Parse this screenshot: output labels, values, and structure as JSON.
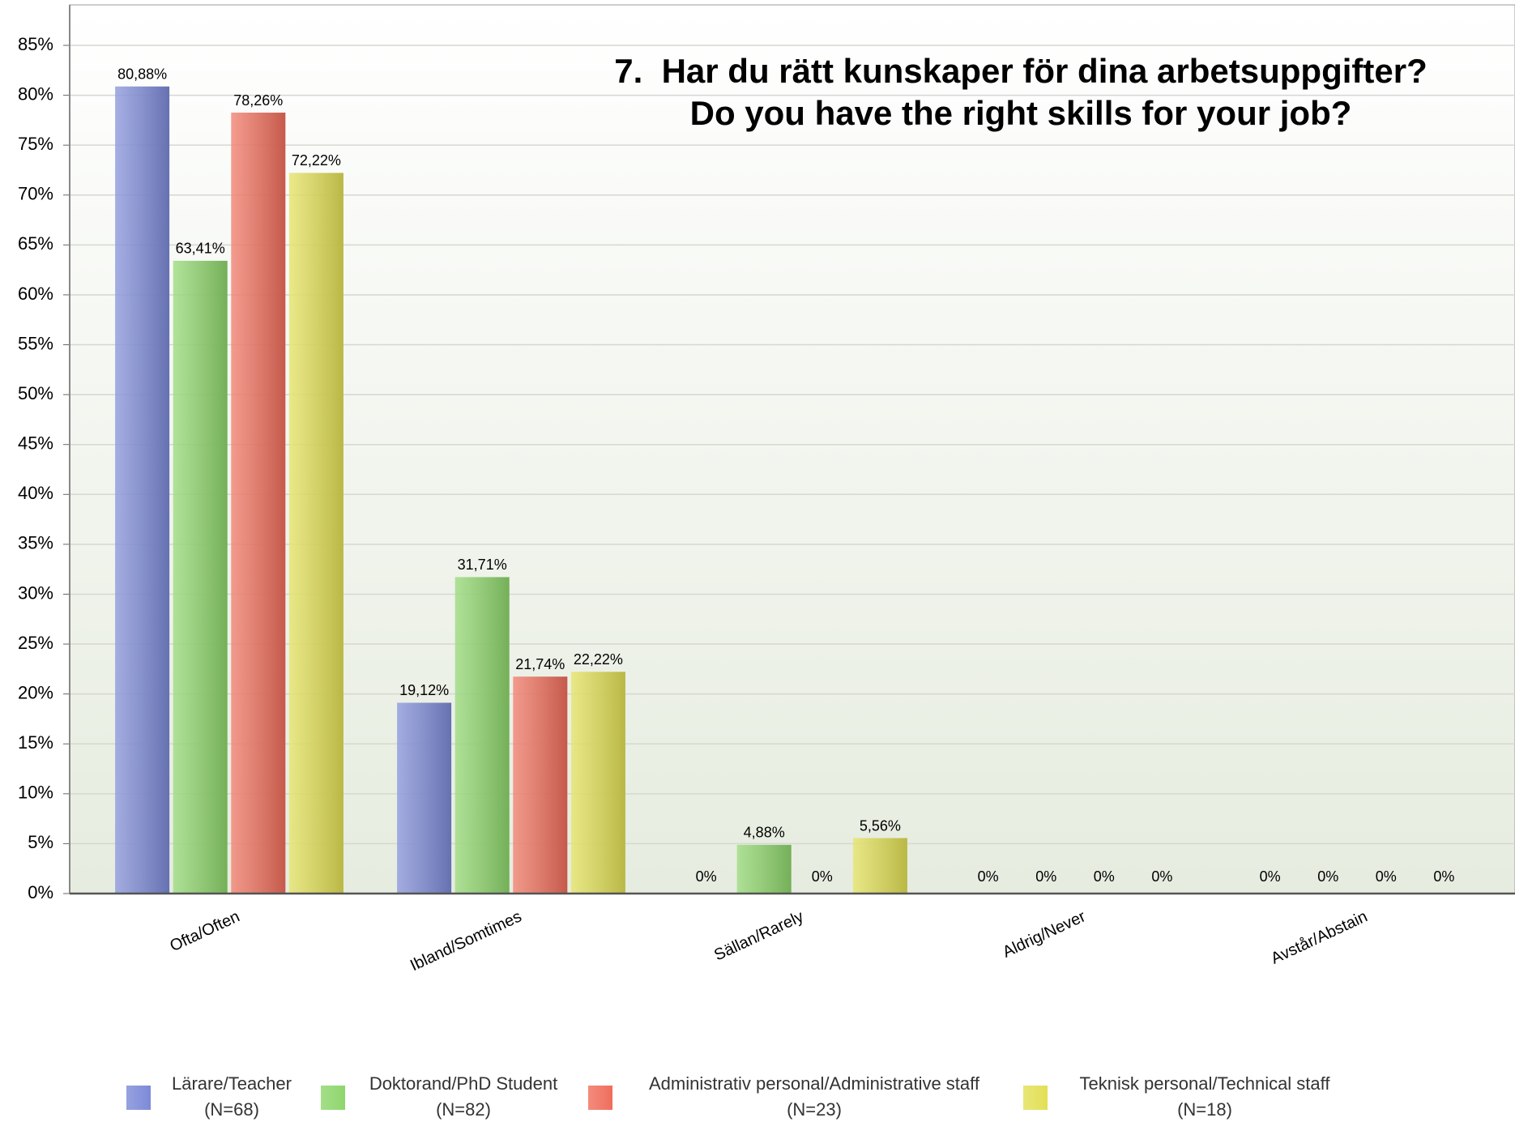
{
  "chart_data": {
    "type": "bar",
    "title": "7.  Har du rätt kunskaper för dina arbetsuppgifter?\nDo you have the right skills for your job?",
    "categories": [
      "Ofta/Often",
      "Ibland/Somtimes",
      "Sällan/Rarely",
      "Aldrig/Never",
      "Avstår/Abstain"
    ],
    "series": [
      {
        "name": "Lärare/Teacher\n(N=68)",
        "color": "#7d8ad8",
        "values": [
          80.88,
          19.12,
          0,
          0,
          0
        ],
        "value_labels": [
          "80,88%",
          "19,12%",
          "0%",
          "0%",
          "0%"
        ]
      },
      {
        "name": "Doktorand/PhD Student\n(N=82)",
        "color": "#8ed66c",
        "values": [
          63.41,
          31.71,
          4.88,
          0,
          0
        ],
        "value_labels": [
          "63,41%",
          "31,71%",
          "4,88%",
          "0%",
          "0%"
        ]
      },
      {
        "name": "Administrativ personal/Administrative staff\n(N=23)",
        "color": "#f06e5c",
        "values": [
          78.26,
          21.74,
          0,
          0,
          0
        ],
        "value_labels": [
          "78,26%",
          "21,74%",
          "0%",
          "0%",
          "0%"
        ]
      },
      {
        "name": "Teknisk personal/Technical staff\n(N=18)",
        "color": "#e2e055",
        "values": [
          72.22,
          22.22,
          5.56,
          0,
          0
        ],
        "value_labels": [
          "72,22%",
          "22,22%",
          "5,56%",
          "0%",
          "0%"
        ]
      }
    ],
    "ylim": [
      0,
      85
    ],
    "yticks": [
      {
        "value": 0,
        "label": "0%"
      },
      {
        "value": 5,
        "label": "5%"
      },
      {
        "value": 10,
        "label": "10%"
      },
      {
        "value": 15,
        "label": "15%"
      },
      {
        "value": 20,
        "label": "20%"
      },
      {
        "value": 25,
        "label": "25%"
      },
      {
        "value": 30,
        "label": "30%"
      },
      {
        "value": 35,
        "label": "35%"
      },
      {
        "value": 40,
        "label": "40%"
      },
      {
        "value": 45,
        "label": "45%"
      },
      {
        "value": 50,
        "label": "50%"
      },
      {
        "value": 55,
        "label": "55%"
      },
      {
        "value": 60,
        "label": "60%"
      },
      {
        "value": 65,
        "label": "65%"
      },
      {
        "value": 70,
        "label": "70%"
      },
      {
        "value": 75,
        "label": "75%"
      },
      {
        "value": 80,
        "label": "80%"
      },
      {
        "value": 85,
        "label": "85%"
      }
    ],
    "grid": true,
    "legend": "bottom"
  }
}
